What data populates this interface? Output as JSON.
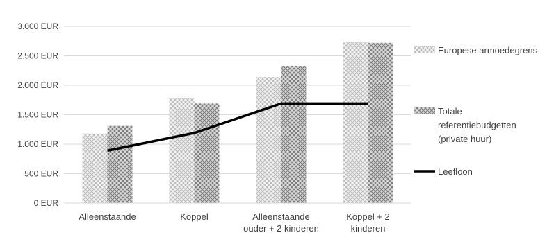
{
  "chart_data": {
    "type": "bar",
    "title": "",
    "xlabel": "",
    "ylabel": "",
    "ylim": [
      0,
      3000
    ],
    "yticks": [
      0,
      500,
      1000,
      1500,
      2000,
      2500,
      3000
    ],
    "yticks_labels": [
      "0 EUR",
      "500 EUR",
      "1.000 EUR",
      "1.500 EUR",
      "2.000 EUR",
      "2.500 EUR",
      "3.000 EUR"
    ],
    "grid": true,
    "legend_position": "right",
    "categories": [
      [
        "Alleenstaande"
      ],
      [
        "Koppel"
      ],
      [
        "Alleenstaande",
        "ouder + 2 kinderen"
      ],
      [
        "Koppel + 2",
        "kinderen"
      ]
    ],
    "series": [
      {
        "name": "Europese armoedegrens",
        "kind": "bar",
        "pattern": "light-crosshatch",
        "values": [
          1180,
          1780,
          2140,
          2730
        ]
      },
      {
        "name": "Totale referentiebudgetten (private huur)",
        "name_lines": [
          "Totale",
          "referentiebudgetten",
          "(private huur)"
        ],
        "kind": "bar",
        "pattern": "dark-crosshatch",
        "values": [
          1310,
          1690,
          2330,
          2720
        ]
      },
      {
        "name": "Leefloon",
        "kind": "line",
        "color": "#000000",
        "values": [
          890,
          1190,
          1690,
          1690
        ]
      }
    ]
  }
}
